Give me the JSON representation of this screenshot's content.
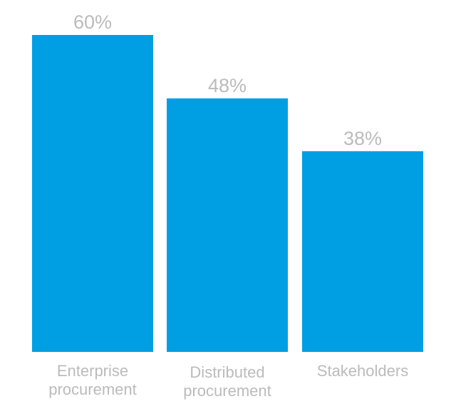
{
  "chart_data": {
    "type": "bar",
    "categories": [
      [
        "Enterprise",
        "procurement"
      ],
      [
        "Distributed",
        "procurement"
      ],
      [
        "Stakeholders"
      ]
    ],
    "values": [
      60,
      48,
      38
    ],
    "value_labels": [
      "60%",
      "48%",
      "38%"
    ],
    "ylim": [
      0,
      60
    ],
    "grid": false,
    "legend": "none",
    "colors": {
      "bar": "#009FE3",
      "value_text": "#BBBBBB",
      "category_text": "#BBBBBB"
    }
  }
}
